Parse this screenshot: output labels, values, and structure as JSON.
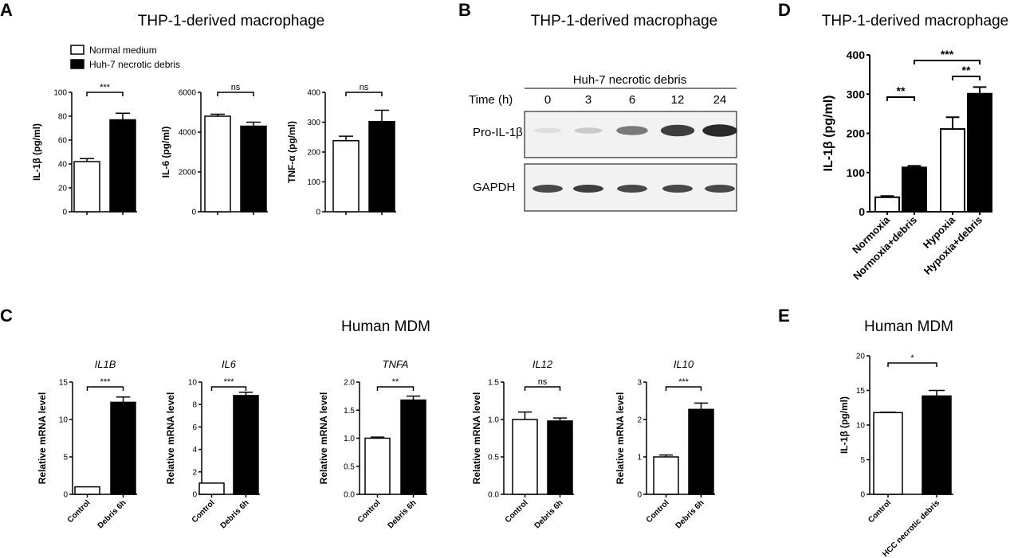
{
  "panels": {
    "A": {
      "letter": "A",
      "title": "THP-1-derived macrophage"
    },
    "B": {
      "letter": "B",
      "title": "THP-1-derived macrophage"
    },
    "C": {
      "letter": "C",
      "title": "Human MDM"
    },
    "D": {
      "letter": "D",
      "title": "THP-1-derived macrophage"
    },
    "E": {
      "letter": "E",
      "title": "Human MDM"
    }
  },
  "legend": {
    "items": [
      {
        "label": "Normal medium",
        "fill": "#ffffff"
      },
      {
        "label": "Huh-7 necrotic debris",
        "fill": "#000000"
      }
    ]
  },
  "western_blot": {
    "header": "Huh-7 necrotic debris",
    "time_label": "Time (h)",
    "times": [
      "0",
      "3",
      "6",
      "12",
      "24"
    ],
    "rows": [
      {
        "label": "Pro-IL-1β",
        "intensity": [
          0.05,
          0.15,
          0.55,
          0.85,
          0.95
        ]
      },
      {
        "label": "GAPDH",
        "intensity": [
          0.8,
          0.85,
          0.8,
          0.8,
          0.8
        ]
      }
    ]
  },
  "chart_data": [
    {
      "id": "A1",
      "type": "bar",
      "ylabel": "IL-1β (pg/ml)",
      "ylim": [
        0,
        100
      ],
      "yticks": [
        "0",
        "20",
        "40",
        "60",
        "80",
        "100"
      ],
      "values": [
        42,
        77
      ],
      "errors": [
        2.5,
        5.5
      ],
      "fills": [
        "#ffffff",
        "#000000"
      ],
      "significance": [
        {
          "a": 0,
          "b": 1,
          "label": "***"
        }
      ]
    },
    {
      "id": "A2",
      "type": "bar",
      "ylabel": "IL-6 (pg/ml)",
      "ylim": [
        0,
        6000
      ],
      "yticks": [
        "0",
        "2000",
        "4000",
        "6000"
      ],
      "values": [
        4800,
        4300
      ],
      "errors": [
        100,
        200
      ],
      "fills": [
        "#ffffff",
        "#000000"
      ],
      "significance": [
        {
          "a": 0,
          "b": 1,
          "label": "ns"
        }
      ]
    },
    {
      "id": "A3",
      "type": "bar",
      "ylabel": "TNF-α (pg/ml)",
      "ylim": [
        0,
        400
      ],
      "yticks": [
        "0",
        "100",
        "200",
        "300",
        "400"
      ],
      "values": [
        238,
        302
      ],
      "errors": [
        15,
        38
      ],
      "fills": [
        "#ffffff",
        "#000000"
      ],
      "significance": [
        {
          "a": 0,
          "b": 1,
          "label": "ns"
        }
      ]
    },
    {
      "id": "C1",
      "type": "bar",
      "gene": "IL1B",
      "ylabel": "Relative mRNA  level",
      "ylim": [
        0,
        15
      ],
      "yticks": [
        "0",
        "5",
        "10",
        "15"
      ],
      "categories": [
        "Control",
        "Debris 6h"
      ],
      "values": [
        1.0,
        12.3
      ],
      "errors": [
        0,
        0.7
      ],
      "fills": [
        "#ffffff",
        "#000000"
      ],
      "significance": [
        {
          "a": 0,
          "b": 1,
          "label": "***"
        }
      ]
    },
    {
      "id": "C2",
      "type": "bar",
      "gene": "IL6",
      "ylabel": "Relative mRNA  level",
      "ylim": [
        0,
        10
      ],
      "yticks": [
        "0",
        "2",
        "4",
        "6",
        "8",
        "10"
      ],
      "categories": [
        "Control",
        "Debris 6h"
      ],
      "values": [
        1.0,
        8.8
      ],
      "errors": [
        0,
        0.3
      ],
      "fills": [
        "#ffffff",
        "#000000"
      ],
      "significance": [
        {
          "a": 0,
          "b": 1,
          "label": "***"
        }
      ]
    },
    {
      "id": "C3",
      "type": "bar",
      "gene": "TNFA",
      "ylabel": "Relative mRNA  level",
      "ylim": [
        0,
        2.0
      ],
      "yticks": [
        "0.0",
        "0.5",
        "1.0",
        "1.5",
        "2.0"
      ],
      "categories": [
        "Control",
        "Debris 6h"
      ],
      "values": [
        1.0,
        1.68
      ],
      "errors": [
        0.02,
        0.07
      ],
      "fills": [
        "#ffffff",
        "#000000"
      ],
      "significance": [
        {
          "a": 0,
          "b": 1,
          "label": "**"
        }
      ]
    },
    {
      "id": "C4",
      "type": "bar",
      "gene": "IL12",
      "ylabel": "Relative mRNA  level",
      "ylim": [
        0,
        1.5
      ],
      "yticks": [
        "0.0",
        "0.5",
        "1.0",
        "1.5"
      ],
      "categories": [
        "Control",
        "Debris 6h"
      ],
      "values": [
        1.0,
        0.98
      ],
      "errors": [
        0.1,
        0.04
      ],
      "fills": [
        "#ffffff",
        "#000000"
      ],
      "significance": [
        {
          "a": 0,
          "b": 1,
          "label": "ns"
        }
      ]
    },
    {
      "id": "C5",
      "type": "bar",
      "gene": "IL10",
      "ylabel": "Relative mRNA  level",
      "ylim": [
        0,
        3
      ],
      "yticks": [
        "0",
        "1",
        "2",
        "3"
      ],
      "categories": [
        "Control",
        "Debris 6h"
      ],
      "values": [
        1.0,
        2.27
      ],
      "errors": [
        0.05,
        0.17
      ],
      "fills": [
        "#ffffff",
        "#000000"
      ],
      "significance": [
        {
          "a": 0,
          "b": 1,
          "label": "***"
        }
      ]
    },
    {
      "id": "D",
      "type": "bar",
      "ylabel": "IL-1β (pg/ml)",
      "ylim": [
        0,
        400
      ],
      "yticks": [
        "0",
        "100",
        "200",
        "300",
        "400"
      ],
      "categories": [
        "Normoxia",
        "Normoxia+debris",
        "Hypoxia",
        "Hypoxia+debris"
      ],
      "values": [
        37,
        113,
        211,
        301
      ],
      "errors": [
        3,
        4,
        30,
        17
      ],
      "fills": [
        "#ffffff",
        "#000000",
        "#ffffff",
        "#000000"
      ],
      "significance": [
        {
          "a": 0,
          "b": 1,
          "label": "**"
        },
        {
          "a": 2,
          "b": 3,
          "label": "**"
        },
        {
          "a": 1,
          "b": 3,
          "label": "***"
        }
      ]
    },
    {
      "id": "E",
      "type": "bar",
      "ylabel": "IL-1β (pg/ml)",
      "ylim": [
        0,
        20
      ],
      "yticks": [
        "0",
        "5",
        "10",
        "15",
        "20"
      ],
      "categories": [
        "Control",
        "HCC necrotic debris"
      ],
      "values": [
        11.8,
        14.2
      ],
      "errors": [
        0.05,
        0.8
      ],
      "fills": [
        "#ffffff",
        "#000000"
      ],
      "significance": [
        {
          "a": 0,
          "b": 1,
          "label": "*"
        }
      ]
    }
  ]
}
